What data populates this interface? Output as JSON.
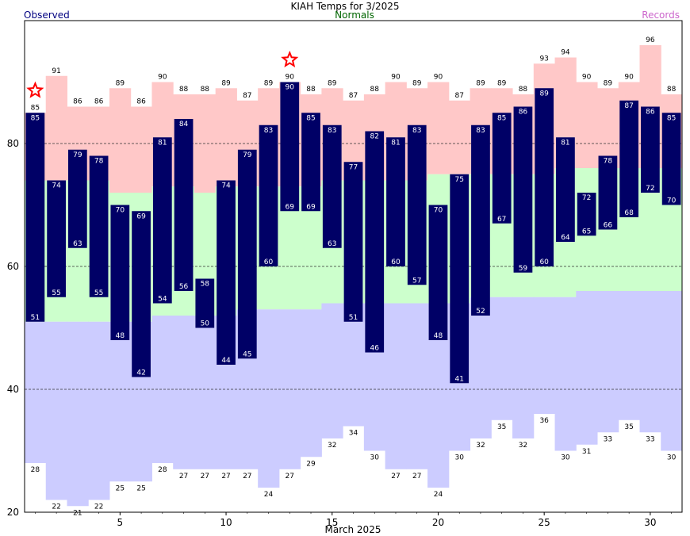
{
  "chart_data": {
    "type": "bar",
    "title": "KIAH Temps for 3/2025",
    "legend": {
      "observed": "Observed",
      "normals": "Normals",
      "records": "Records"
    },
    "xlabel": "March 2025",
    "ylabel": "",
    "days": [
      1,
      2,
      3,
      4,
      5,
      6,
      7,
      8,
      9,
      10,
      11,
      12,
      13,
      14,
      15,
      16,
      17,
      18,
      19,
      20,
      21,
      22,
      23,
      24,
      25,
      26,
      27,
      28,
      29,
      30,
      31
    ],
    "x_ticks": [
      5,
      10,
      15,
      20,
      25,
      30
    ],
    "y_ticks": [
      20,
      40,
      60,
      80
    ],
    "ylim": [
      20,
      100
    ],
    "grid_lines_y": [
      40,
      60,
      80
    ],
    "series": [
      {
        "name": "Observed",
        "role": "obs_high",
        "values": [
          85,
          74,
          79,
          78,
          70,
          69,
          81,
          84,
          58,
          74,
          79,
          83,
          90,
          85,
          83,
          77,
          82,
          81,
          83,
          70,
          75,
          83,
          85,
          86,
          89,
          81,
          72,
          78,
          87,
          86,
          85
        ]
      },
      {
        "name": "Observed",
        "role": "obs_low",
        "values": [
          51,
          55,
          63,
          55,
          48,
          42,
          54,
          56,
          50,
          44,
          45,
          60,
          69,
          69,
          63,
          51,
          46,
          60,
          57,
          48,
          41,
          52,
          67,
          59,
          60,
          64,
          65,
          66,
          68,
          72,
          70
        ]
      },
      {
        "name": "Normals",
        "role": "normal_high",
        "values": [
          null,
          null,
          null,
          null,
          72,
          72,
          null,
          null,
          72,
          null,
          null,
          null,
          null,
          null,
          null,
          null,
          null,
          null,
          null,
          75,
          null,
          null,
          null,
          null,
          null,
          null,
          76,
          null,
          null,
          null,
          null
        ]
      },
      {
        "name": "Records",
        "role": "record_high",
        "values": [
          85,
          91,
          86,
          86,
          89,
          86,
          90,
          88,
          88,
          89,
          87,
          89,
          90,
          88,
          89,
          87,
          88,
          90,
          89,
          90,
          87,
          89,
          89,
          88,
          93,
          94,
          90,
          89,
          90,
          96,
          88
        ]
      },
      {
        "name": "Records",
        "role": "record_low",
        "values": [
          28,
          22,
          21,
          22,
          25,
          25,
          28,
          27,
          27,
          27,
          27,
          24,
          27,
          29,
          32,
          34,
          30,
          27,
          27,
          24,
          30,
          32,
          35,
          32,
          36,
          30,
          31,
          33,
          35,
          33,
          30
        ]
      }
    ],
    "bands": {
      "normal_high": [
        74,
        74,
        74,
        74,
        72,
        72,
        73,
        73,
        72,
        73,
        73,
        73,
        73,
        73,
        74,
        74,
        74,
        74,
        74,
        75,
        75,
        75,
        75,
        75,
        75,
        76,
        76,
        76,
        76,
        76,
        76
      ],
      "normal_low": [
        51,
        51,
        51,
        51,
        51,
        51,
        52,
        52,
        52,
        52,
        53,
        53,
        53,
        53,
        54,
        54,
        54,
        54,
        54,
        54,
        54,
        55,
        55,
        55,
        55,
        55,
        56,
        56,
        56,
        56,
        56
      ]
    },
    "record_markers": [
      1,
      13
    ],
    "colors": {
      "record_band": "#ffc8c8",
      "normal_band": "#ccffcc",
      "low_band": "#ccccff",
      "observed_bar": "#000066",
      "marker": "#ff0000",
      "observed_text": "#000080",
      "normals_text": "#006600",
      "records_text": "#cc66cc",
      "grid": "#333333"
    }
  }
}
